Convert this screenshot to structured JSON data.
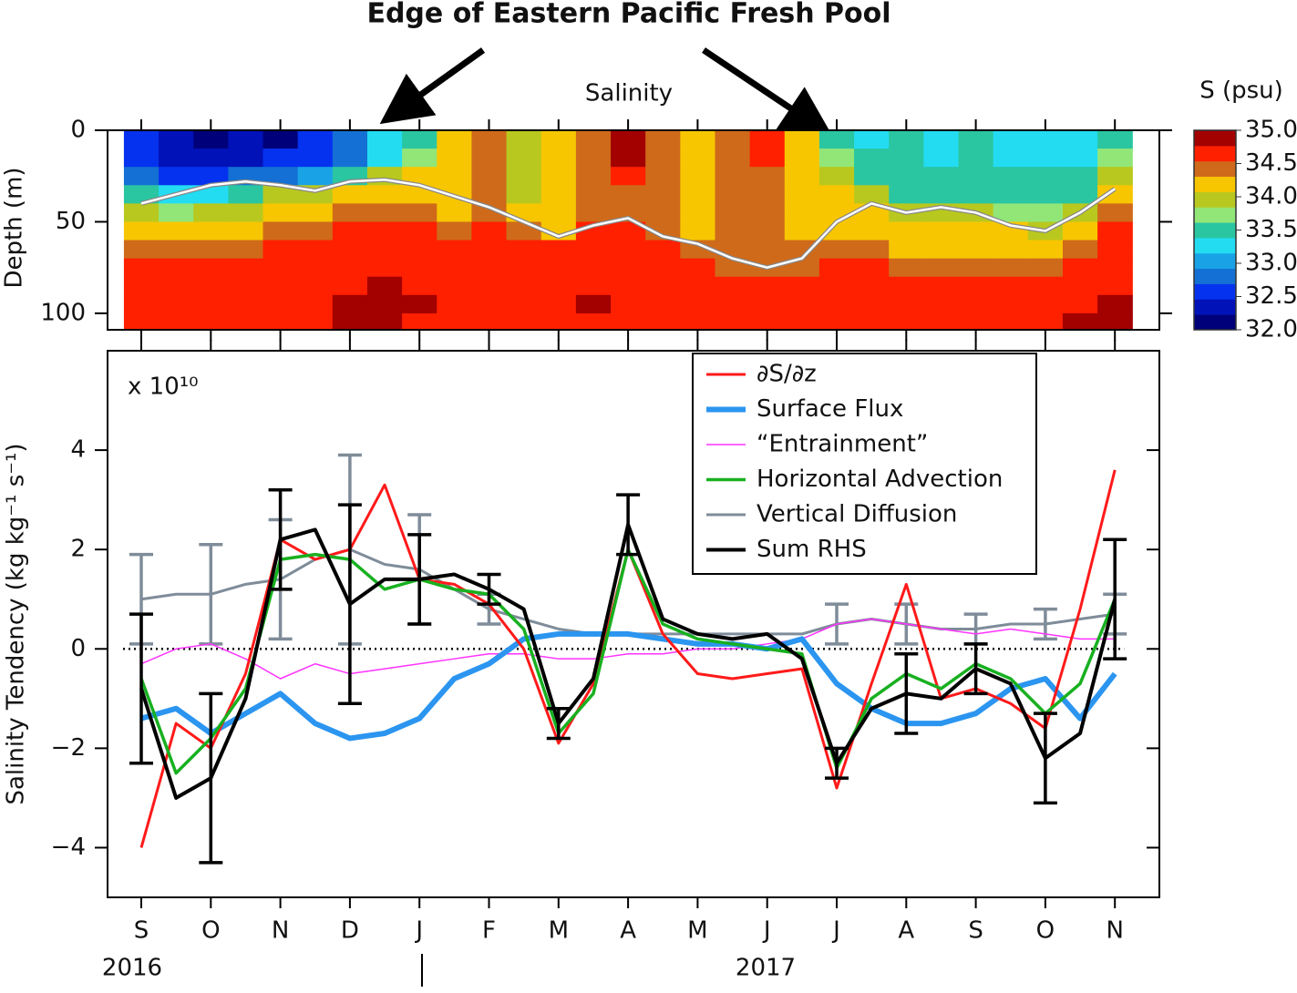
{
  "title": "Edge of Eastern Pacific Fresh Pool",
  "chart_data": [
    {
      "type": "contour",
      "title": "Salinity",
      "ylabel": "Depth (m)",
      "ylim": [
        0,
        109
      ],
      "yticks": [
        0,
        50,
        100
      ],
      "inverted_y": true,
      "depths": [
        5,
        15,
        25,
        35,
        45,
        55,
        65,
        75,
        85,
        95,
        105
      ],
      "salinity": [
        [
          32.6,
          32.6,
          32.7,
          33.4,
          33.9,
          34.1,
          34.4,
          34.6,
          34.6,
          34.6,
          34.6
        ],
        [
          32.3,
          32.4,
          32.6,
          33.2,
          33.8,
          34.1,
          34.4,
          34.6,
          34.6,
          34.6,
          34.6
        ],
        [
          32.2,
          32.3,
          32.6,
          33.3,
          33.9,
          34.2,
          34.4,
          34.6,
          34.6,
          34.6,
          34.6
        ],
        [
          32.3,
          32.4,
          32.7,
          33.6,
          34.0,
          34.3,
          34.4,
          34.6,
          34.6,
          34.6,
          34.6
        ],
        [
          32.2,
          32.5,
          32.9,
          34.0,
          34.3,
          34.4,
          34.6,
          34.6,
          34.6,
          34.6,
          34.6
        ],
        [
          32.5,
          32.6,
          33.0,
          34.0,
          34.3,
          34.4,
          34.6,
          34.6,
          34.6,
          34.6,
          34.6
        ],
        [
          32.8,
          32.9,
          33.4,
          34.3,
          34.4,
          34.6,
          34.6,
          34.6,
          34.6,
          34.8,
          34.8
        ],
        [
          33.2,
          33.3,
          33.9,
          34.3,
          34.4,
          34.6,
          34.6,
          34.6,
          34.8,
          34.8,
          34.8
        ],
        [
          33.6,
          33.7,
          34.1,
          34.3,
          34.4,
          34.6,
          34.6,
          34.6,
          34.6,
          34.8,
          34.6
        ],
        [
          34.1,
          34.1,
          34.1,
          34.1,
          34.3,
          34.4,
          34.6,
          34.6,
          34.6,
          34.6,
          34.6
        ],
        [
          34.4,
          34.4,
          34.4,
          34.4,
          34.4,
          34.6,
          34.6,
          34.6,
          34.6,
          34.6,
          34.6
        ],
        [
          33.9,
          33.9,
          33.9,
          33.9,
          34.1,
          34.4,
          34.6,
          34.6,
          34.6,
          34.6,
          34.6
        ],
        [
          34.1,
          34.1,
          34.1,
          34.1,
          34.1,
          34.3,
          34.6,
          34.6,
          34.6,
          34.6,
          34.6
        ],
        [
          34.4,
          34.4,
          34.4,
          34.4,
          34.4,
          34.6,
          34.6,
          34.6,
          34.6,
          34.8,
          34.6
        ],
        [
          34.8,
          34.8,
          34.6,
          34.4,
          34.4,
          34.6,
          34.6,
          34.6,
          34.6,
          34.6,
          34.6
        ],
        [
          34.4,
          34.4,
          34.4,
          34.4,
          34.4,
          34.4,
          34.6,
          34.6,
          34.6,
          34.6,
          34.6
        ],
        [
          34.1,
          34.1,
          34.1,
          34.1,
          34.1,
          34.1,
          34.4,
          34.6,
          34.6,
          34.6,
          34.6
        ],
        [
          34.4,
          34.4,
          34.4,
          34.4,
          34.4,
          34.4,
          34.4,
          34.4,
          34.6,
          34.6,
          34.6
        ],
        [
          34.6,
          34.6,
          34.4,
          34.4,
          34.4,
          34.4,
          34.4,
          34.4,
          34.6,
          34.6,
          34.6
        ],
        [
          34.1,
          34.1,
          34.1,
          34.1,
          34.1,
          34.1,
          34.4,
          34.4,
          34.6,
          34.6,
          34.6
        ],
        [
          33.6,
          33.7,
          33.9,
          34.1,
          34.1,
          34.3,
          34.4,
          34.6,
          34.6,
          34.6,
          34.6
        ],
        [
          33.3,
          33.4,
          33.6,
          33.9,
          34.1,
          34.3,
          34.4,
          34.6,
          34.6,
          34.6,
          34.6
        ],
        [
          33.4,
          33.4,
          33.5,
          33.6,
          34.0,
          34.1,
          34.3,
          34.4,
          34.6,
          34.6,
          34.6
        ],
        [
          33.3,
          33.3,
          33.4,
          33.6,
          33.9,
          34.1,
          34.3,
          34.4,
          34.6,
          34.6,
          34.6
        ],
        [
          33.4,
          33.4,
          33.4,
          33.6,
          33.9,
          34.1,
          34.3,
          34.4,
          34.6,
          34.6,
          34.6
        ],
        [
          33.3,
          33.3,
          33.4,
          33.5,
          33.8,
          34.1,
          34.2,
          34.4,
          34.6,
          34.6,
          34.6
        ],
        [
          33.3,
          33.3,
          33.4,
          33.5,
          33.7,
          34.0,
          34.2,
          34.4,
          34.6,
          34.6,
          34.6
        ],
        [
          33.2,
          33.3,
          33.4,
          33.6,
          34.0,
          34.2,
          34.4,
          34.6,
          34.6,
          34.6,
          34.8
        ],
        [
          33.6,
          33.7,
          33.9,
          34.3,
          34.4,
          34.6,
          34.6,
          34.6,
          34.6,
          34.8,
          34.8
        ]
      ],
      "line": {
        "color": "#ffffff",
        "outline": "#888888",
        "values": [
          40,
          35,
          30,
          28,
          30,
          33,
          28,
          27,
          30,
          36,
          42,
          50,
          58,
          52,
          48,
          58,
          62,
          70,
          75,
          70,
          50,
          40,
          45,
          42,
          45,
          52,
          55,
          45,
          32
        ]
      },
      "colorbar": {
        "title": "S (psu)",
        "lim": [
          32,
          35
        ],
        "ticks": [
          {
            "value": 35,
            "label": "35.0"
          },
          {
            "value": 34.5,
            "label": "34.5"
          },
          {
            "value": 34,
            "label": "34.0"
          },
          {
            "value": 33.5,
            "label": "33.5"
          },
          {
            "value": 33,
            "label": "33.0"
          },
          {
            "value": 32.5,
            "label": "32.5"
          },
          {
            "value": 32,
            "label": "32.0"
          }
        ],
        "colors": [
          "#00007a",
          "#0012b8",
          "#0532ee",
          "#1470d4",
          "#19a3e6",
          "#23dcf2",
          "#2ac6a2",
          "#92e678",
          "#b9c81e",
          "#f7c600",
          "#cf6a1a",
          "#ff2000",
          "#a30000"
        ]
      }
    },
    {
      "type": "line",
      "ylabel": "Salinity Tendency (kg kg⁻¹ s⁻¹)",
      "multiplier": "x 10¹⁰",
      "categories": [
        "S",
        null,
        "O",
        null,
        "N",
        null,
        "D",
        null,
        "J",
        null,
        "F",
        null,
        "M",
        null,
        "A",
        null,
        "M",
        null,
        "J",
        null,
        "J",
        null,
        "A",
        null,
        "S",
        null,
        "O",
        null,
        "N"
      ],
      "years": [
        "2016",
        "2017"
      ],
      "ylim": [
        -5,
        6
      ],
      "yticks": [
        {
          "value": 4,
          "label": "4"
        },
        {
          "value": 2,
          "label": "2"
        },
        {
          "value": 0,
          "label": "0"
        },
        {
          "value": -2,
          "label": "−2"
        },
        {
          "value": -4,
          "label": "−4"
        }
      ],
      "zero_line": true,
      "legend": "upper right",
      "series": [
        {
          "name": "∂S/∂z",
          "color": "#ff1a1a",
          "values": [
            -4.0,
            -1.5,
            -2.0,
            -0.5,
            2.2,
            1.8,
            2.0,
            3.3,
            1.4,
            1.3,
            0.9,
            0.0,
            -1.9,
            -0.7,
            2.0,
            0.3,
            -0.5,
            -0.6,
            -0.5,
            -0.4,
            -2.8,
            -0.7,
            1.3,
            -1.0,
            -0.8,
            -1.1,
            -1.6,
            0.8,
            3.6
          ]
        },
        {
          "name": "Surface Flux",
          "color": "#2b95f0",
          "values": [
            -1.4,
            -1.2,
            -1.7,
            -1.3,
            -0.9,
            -1.5,
            -1.8,
            -1.7,
            -1.4,
            -0.6,
            -0.3,
            0.2,
            0.3,
            0.3,
            0.3,
            0.2,
            0.1,
            0.1,
            0.0,
            0.2,
            -0.7,
            -1.2,
            -1.5,
            -1.5,
            -1.3,
            -0.8,
            -0.6,
            -1.4,
            -0.5
          ]
        },
        {
          "name": "“Entrainment”",
          "color": "#ff33ff",
          "values": [
            -0.3,
            0.0,
            0.1,
            -0.2,
            -0.6,
            -0.3,
            -0.5,
            -0.4,
            -0.3,
            -0.2,
            -0.1,
            -0.1,
            -0.2,
            -0.2,
            -0.1,
            -0.1,
            0.0,
            0.0,
            0.1,
            0.2,
            0.5,
            0.6,
            0.5,
            0.4,
            0.3,
            0.4,
            0.3,
            0.2,
            0.2
          ]
        },
        {
          "name": "Horizontal Advection",
          "color": "#18b020",
          "values": [
            -0.6,
            -2.5,
            -1.8,
            -0.8,
            1.8,
            1.9,
            1.8,
            1.2,
            1.4,
            1.2,
            1.1,
            0.4,
            -1.7,
            -0.9,
            2.0,
            0.5,
            0.2,
            0.1,
            0.0,
            -0.1,
            -2.4,
            -1.0,
            -0.5,
            -0.8,
            -0.3,
            -0.6,
            -1.3,
            -0.7,
            1.0
          ]
        },
        {
          "name": "Vertical Diffusion",
          "color": "#7f8c99",
          "values": [
            1.0,
            1.1,
            1.1,
            1.3,
            1.4,
            1.8,
            2.0,
            1.7,
            1.6,
            1.2,
            0.8,
            0.6,
            0.4,
            0.3,
            0.3,
            0.3,
            0.3,
            0.3,
            0.3,
            0.3,
            0.5,
            0.6,
            0.5,
            0.4,
            0.4,
            0.5,
            0.5,
            0.6,
            0.7
          ],
          "errors": [
            0.9,
            null,
            1.0,
            null,
            1.2,
            null,
            1.9,
            null,
            1.1,
            null,
            0.3,
            null,
            null,
            null,
            null,
            null,
            null,
            null,
            null,
            null,
            0.4,
            null,
            0.4,
            null,
            0.3,
            null,
            0.3,
            null,
            0.4
          ]
        },
        {
          "name": "Sum RHS",
          "color": "#000000",
          "values": [
            -0.8,
            -3.0,
            -2.6,
            -1.0,
            2.2,
            2.4,
            0.9,
            1.4,
            1.4,
            1.5,
            1.2,
            0.8,
            -1.5,
            -0.6,
            2.5,
            0.6,
            0.3,
            0.2,
            0.3,
            -0.2,
            -2.3,
            -1.2,
            -0.9,
            -1.0,
            -0.4,
            -0.7,
            -2.2,
            -1.7,
            1.0
          ],
          "errors": [
            1.5,
            null,
            1.7,
            null,
            1.0,
            null,
            2.0,
            null,
            0.9,
            null,
            0.3,
            null,
            0.3,
            null,
            0.6,
            null,
            null,
            null,
            null,
            null,
            0.3,
            null,
            0.8,
            null,
            0.5,
            null,
            0.9,
            null,
            1.2
          ]
        }
      ]
    }
  ]
}
